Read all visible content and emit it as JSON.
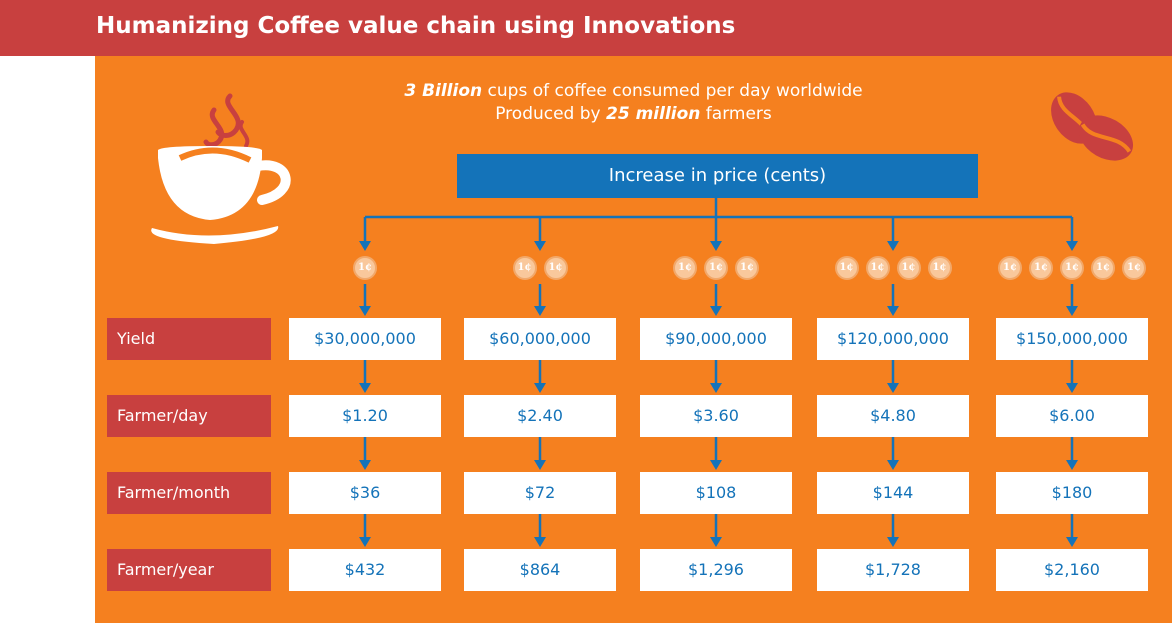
{
  "header": {
    "title": "Humanizing Coffee value chain using Innovations"
  },
  "intro": {
    "line1_bold": "3 Billion",
    "line1_rest": " cups of coffee consumed per day worldwide",
    "line2_prefix": "Produced by ",
    "line2_bold": "25 million",
    "line2_rest": " farmers"
  },
  "price_box": {
    "label": "Increase in price (cents)"
  },
  "coin_label": "1¢",
  "columns": [
    {
      "coins": 1,
      "yield": "$30,000,000",
      "day": "$1.20",
      "month": "$36",
      "year": "$432"
    },
    {
      "coins": 2,
      "yield": "$60,000,000",
      "day": "$2.40",
      "month": "$72",
      "year": "$864"
    },
    {
      "coins": 3,
      "yield": "$90,000,000",
      "day": "$3.60",
      "month": "$108",
      "year": "$1,296"
    },
    {
      "coins": 4,
      "yield": "$120,000,000",
      "day": "$4.80",
      "month": "$144",
      "year": "$1,728"
    },
    {
      "coins": 5,
      "yield": "$150,000,000",
      "day": "$6.00",
      "month": "$180",
      "year": "$2,160"
    }
  ],
  "rows": [
    {
      "label": "Yield"
    },
    {
      "label": "Farmer/day"
    },
    {
      "label": "Farmer/month"
    },
    {
      "label": "Farmer/year"
    }
  ],
  "colors": {
    "header": "#c8403f",
    "panel": "#f5801f",
    "blue": "#1473b9",
    "coin": "#f9c89c"
  },
  "icons": [
    "coffee-cup-icon",
    "coffee-beans-icon",
    "coin-icon",
    "arrow-down-icon"
  ]
}
